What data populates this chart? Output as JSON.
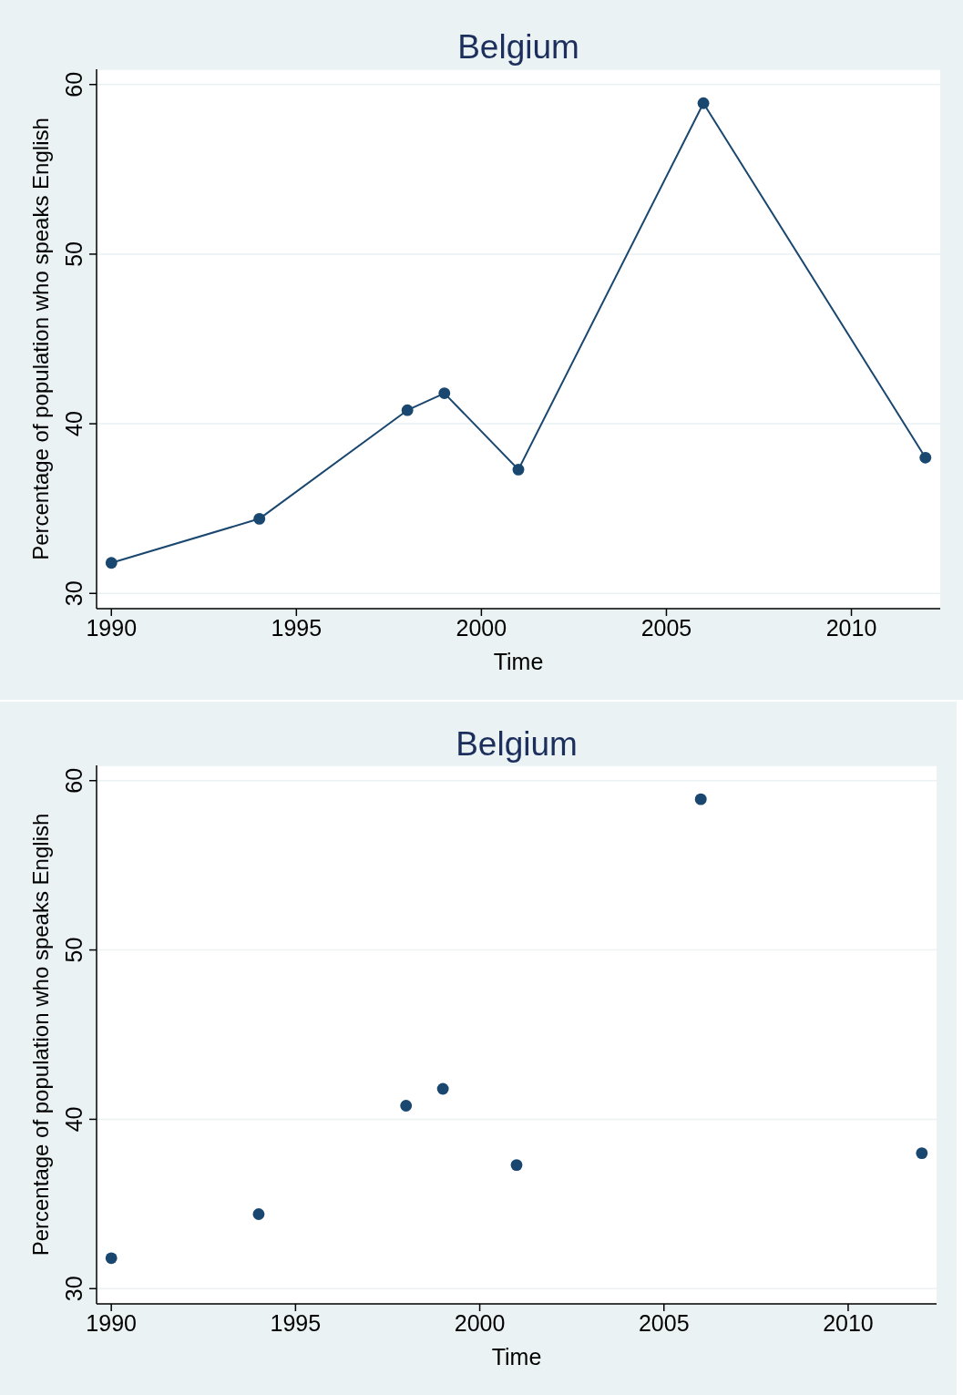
{
  "chart_data": [
    {
      "type": "line",
      "title": "Belgium",
      "xlabel": "Time",
      "ylabel": "Percentage of population who speaks English",
      "x": [
        1990,
        1994,
        1998,
        1999,
        2001,
        2006,
        2012
      ],
      "series": [
        {
          "color": "#1a476f",
          "values": [
            31.8,
            34.4,
            40.8,
            41.8,
            37.3,
            58.9,
            38.0
          ]
        }
      ],
      "xlim": [
        1989.6,
        2012.4
      ],
      "ylim": [
        29.1,
        60.9
      ],
      "xticks": [
        1990,
        1995,
        2000,
        2005,
        2010
      ],
      "yticks": [
        30,
        40,
        50,
        60
      ],
      "grid": "y",
      "marker": "circle",
      "line_style": "solid"
    },
    {
      "type": "scatter",
      "title": "Belgium",
      "xlabel": "Time",
      "ylabel": "Percentage of population who speaks English",
      "x": [
        1990,
        1994,
        1998,
        1999,
        2001,
        2006,
        2012
      ],
      "series": [
        {
          "color": "#1a476f",
          "values": [
            31.8,
            34.4,
            40.8,
            41.8,
            37.3,
            58.9,
            38.0
          ]
        }
      ],
      "xlim": [
        1989.6,
        2012.4
      ],
      "ylim": [
        29.1,
        60.9
      ],
      "xticks": [
        1990,
        1995,
        2000,
        2005,
        2010
      ],
      "yticks": [
        30,
        40,
        50,
        60
      ],
      "grid": "y",
      "marker": "circle"
    }
  ]
}
